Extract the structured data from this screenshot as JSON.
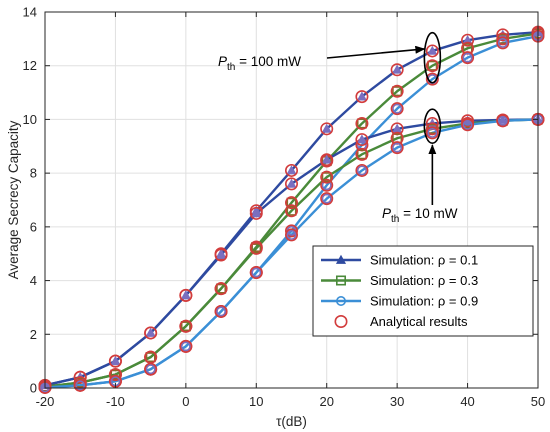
{
  "chart_data": {
    "type": "line",
    "xlabel": "τ(dB)",
    "ylabel": "Average Secrecy Capacity",
    "xlim": [
      -20,
      50
    ],
    "ylim": [
      0,
      14
    ],
    "xticks": [
      -20,
      -10,
      0,
      10,
      20,
      30,
      40,
      50
    ],
    "yticks": [
      0,
      2,
      4,
      6,
      8,
      10,
      12,
      14
    ],
    "grid": true,
    "legend_position": "lower-right",
    "legend": [
      {
        "label": "Simulation: ρ = 0.1",
        "color": "#2e4aa0",
        "marker": "triangle"
      },
      {
        "label": "Simulation: ρ = 0.3",
        "color": "#4a8a3a",
        "marker": "square"
      },
      {
        "label": "Simulation: ρ = 0.9",
        "color": "#3b8fd6",
        "marker": "circle"
      },
      {
        "label": "Analytical results",
        "color": "#d23c3c",
        "marker": "circle-open"
      }
    ],
    "x": [
      -20,
      -15,
      -10,
      -5,
      0,
      5,
      10,
      15,
      20,
      25,
      30,
      35,
      40,
      45,
      50
    ],
    "series": [
      {
        "group": "P_th = 100 mW",
        "color": "#2e4aa0",
        "marker": "triangle",
        "marker_color": "#7a6fbf",
        "values": [
          0.1,
          0.4,
          1.0,
          2.05,
          3.45,
          5.0,
          6.6,
          8.1,
          9.65,
          10.85,
          11.85,
          12.55,
          12.95,
          13.15,
          13.25
        ]
      },
      {
        "group": "P_th = 100 mW",
        "color": "#4a8a3a",
        "marker": "square",
        "marker_color": "#8a6a2a",
        "values": [
          0.05,
          0.2,
          0.5,
          1.15,
          2.3,
          3.7,
          5.25,
          6.9,
          8.45,
          9.85,
          11.05,
          12.0,
          12.65,
          13.0,
          13.2
        ]
      },
      {
        "group": "P_th = 100 mW",
        "color": "#3b8fd6",
        "marker": "circle",
        "marker_color": "#7a6fbf",
        "values": [
          0.02,
          0.1,
          0.25,
          0.7,
          1.55,
          2.85,
          4.3,
          5.85,
          7.55,
          9.05,
          10.4,
          11.5,
          12.3,
          12.85,
          13.1
        ]
      },
      {
        "group": "P_th = 10 mW",
        "color": "#2e4aa0",
        "marker": "triangle",
        "marker_color": "#7a6fbf",
        "values": [
          0.1,
          0.4,
          1.0,
          2.05,
          3.45,
          4.95,
          6.5,
          7.6,
          8.5,
          9.25,
          9.65,
          9.85,
          9.95,
          9.98,
          10.0
        ]
      },
      {
        "group": "P_th = 10 mW",
        "color": "#4a8a3a",
        "marker": "square",
        "marker_color": "#8a6a2a",
        "values": [
          0.05,
          0.2,
          0.5,
          1.15,
          2.3,
          3.7,
          5.2,
          6.6,
          7.85,
          8.7,
          9.3,
          9.65,
          9.85,
          9.95,
          10.0
        ]
      },
      {
        "group": "P_th = 10 mW",
        "color": "#3b8fd6",
        "marker": "circle",
        "marker_color": "#7a6fbf",
        "values": [
          0.02,
          0.1,
          0.25,
          0.7,
          1.55,
          2.85,
          4.3,
          5.7,
          7.05,
          8.1,
          8.95,
          9.5,
          9.8,
          9.95,
          10.0
        ]
      }
    ],
    "annotations": [
      {
        "label": "P",
        "sub": "th",
        "rest": " = 100 mW",
        "target_x": 35,
        "target_y": 12.55
      },
      {
        "label": "P",
        "sub": "th",
        "rest": " = 10 mW",
        "target_x": 35,
        "target_y": 9.7
      }
    ],
    "analytical_color": "#d23c3c"
  }
}
